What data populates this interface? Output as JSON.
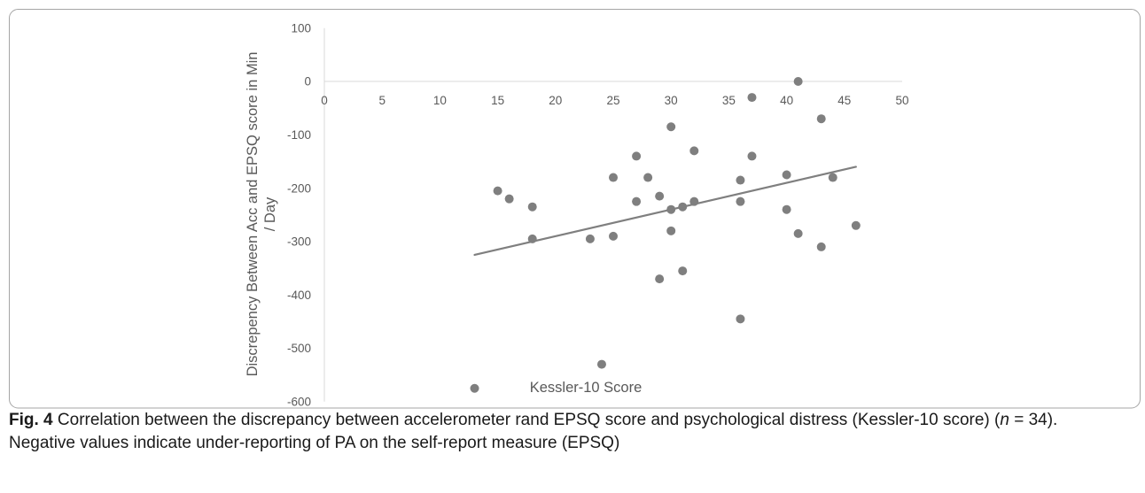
{
  "chart_data": {
    "type": "scatter",
    "xlabel": "Kessler-10 Score",
    "ylabel": "Discrepency Between Acc and EPSQ score in Min\n/ Day",
    "xlim": [
      0,
      50
    ],
    "ylim": [
      -600,
      100
    ],
    "xticks": [
      0,
      5,
      10,
      15,
      20,
      25,
      30,
      35,
      40,
      45,
      50
    ],
    "yticks": [
      100,
      0,
      -100,
      -200,
      -300,
      -400,
      -500,
      -600
    ],
    "x_axis_crosses_y": 0,
    "grid": false,
    "legend": false,
    "series": [
      {
        "x": [
          13,
          15,
          16,
          18,
          18,
          23,
          24,
          25,
          25,
          27,
          27,
          28,
          29,
          29,
          30,
          30,
          30,
          31,
          31,
          32,
          32,
          36,
          36,
          36,
          37,
          37,
          40,
          40,
          41,
          41,
          43,
          43,
          44,
          46
        ],
        "y": [
          -575,
          -205,
          -220,
          -235,
          -295,
          -295,
          -530,
          -180,
          -290,
          -140,
          -225,
          -180,
          -215,
          -370,
          -85,
          -240,
          -280,
          -235,
          -355,
          -130,
          -225,
          -445,
          -185,
          -225,
          -30,
          -140,
          -175,
          -240,
          0,
          -285,
          -70,
          -310,
          -180,
          -270
        ]
      }
    ],
    "trendline": {
      "x": [
        13,
        46
      ],
      "y": [
        -325,
        -160
      ]
    }
  },
  "colors": {
    "marker": "#7f7f7f",
    "trendline": "#7f7f7f",
    "axis": "#d9d9d9",
    "chart_text": "#595959",
    "frame": "#a5a5a5"
  },
  "caption": {
    "label": "Fig. 4",
    "text_before_n": "Correlation between the discrepancy between accelerometer rand EPSQ score and psychological distress (Kessler-10 score) (",
    "n": "n",
    "text_after_n": " = 34).",
    "second_line": "Negative values indicate under-reporting of PA on the self-report measure (EPSQ)"
  }
}
